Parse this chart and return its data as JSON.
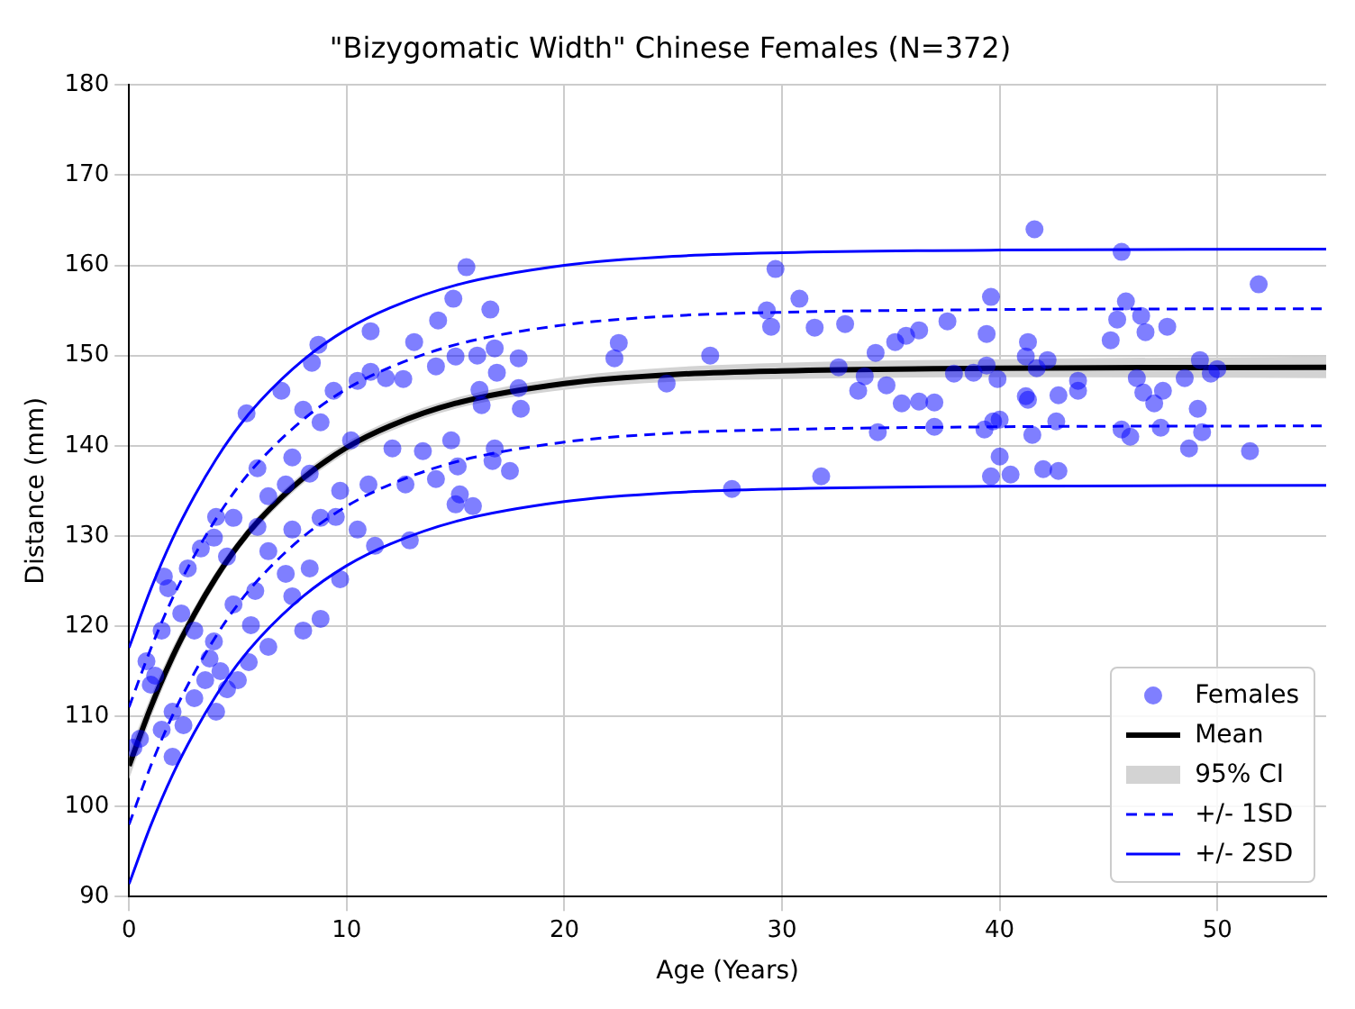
{
  "chart_data": {
    "type": "scatter",
    "title": "\"Bizygomatic Width\" Chinese Females (N=372)",
    "xlabel": "Age (Years)",
    "ylabel": "Distance (mm)",
    "xlim": [
      0,
      55
    ],
    "xticks": [
      0,
      10,
      20,
      30,
      40,
      50
    ],
    "ylim": [
      90,
      180
    ],
    "yticks": [
      90,
      100,
      110,
      120,
      130,
      140,
      150,
      160,
      170,
      180
    ],
    "grid": true,
    "legend": "bottom right",
    "annotations": [
      "95% CI"
    ],
    "series": [
      {
        "name": "Females",
        "type": "scatter",
        "color": "#0000ff",
        "marker": "circle",
        "x": [
          0.2,
          0.5,
          0.8,
          1.0,
          1.2,
          1.5,
          1.5,
          1.6,
          1.8,
          2.0,
          2.0,
          2.4,
          2.5,
          2.7,
          3.0,
          3.0,
          3.3,
          3.5,
          3.7,
          3.9,
          3.9,
          4.0,
          4.0,
          4.2,
          4.5,
          4.5,
          4.8,
          4.8,
          5.0,
          5.4,
          5.5,
          5.6,
          5.8,
          5.9,
          5.9,
          6.4,
          6.4,
          6.4,
          7.0,
          7.2,
          7.2,
          7.5,
          7.5,
          7.5,
          8.0,
          8.0,
          8.3,
          8.3,
          8.4,
          8.7,
          8.8,
          8.8,
          8.8,
          9.4,
          9.5,
          9.7,
          9.7,
          10.2,
          10.5,
          10.5,
          11.0,
          11.1,
          11.1,
          11.3,
          11.8,
          12.1,
          12.6,
          12.7,
          12.9,
          13.1,
          13.5,
          14.1,
          14.1,
          14.2,
          14.8,
          14.9,
          15.0,
          15.0,
          15.1,
          15.2,
          15.5,
          15.8,
          16.0,
          16.1,
          16.2,
          16.6,
          16.7,
          16.8,
          16.8,
          16.9,
          17.5,
          17.9,
          17.9,
          18.0,
          22.3,
          22.5,
          24.7,
          26.7,
          27.7,
          29.3,
          29.5,
          29.7,
          30.8,
          31.5,
          31.8,
          32.6,
          32.9,
          33.5,
          33.8,
          34.3,
          34.4,
          34.8,
          35.2,
          35.5,
          35.7,
          36.3,
          36.3,
          37.0,
          37.0,
          37.6,
          37.9,
          38.8,
          39.3,
          39.4,
          39.4,
          39.6,
          39.6,
          39.7,
          39.9,
          40.0,
          40.0,
          40.5,
          41.2,
          41.2,
          41.3,
          41.3,
          41.5,
          41.6,
          41.7,
          42.0,
          42.2,
          42.6,
          42.7,
          42.7,
          43.6,
          43.6,
          45.1,
          45.4,
          45.6,
          45.6,
          45.8,
          46.0,
          46.3,
          46.5,
          46.6,
          46.7,
          47.1,
          47.4,
          47.5,
          47.7,
          48.5,
          48.7,
          49.1,
          49.2,
          49.3,
          49.7,
          50.0,
          51.5,
          51.9
        ],
        "values": [
          106.5,
          107.5,
          116.1,
          113.5,
          114.5,
          108.5,
          119.5,
          125.5,
          124.2,
          105.5,
          110.5,
          121.4,
          109.0,
          126.4,
          112.0,
          119.5,
          128.6,
          114.0,
          116.4,
          118.3,
          129.8,
          110.5,
          132.1,
          115.0,
          113.0,
          127.7,
          122.4,
          132.0,
          114.0,
          143.6,
          116.0,
          120.1,
          123.9,
          131.0,
          137.5,
          117.7,
          128.3,
          134.4,
          146.1,
          125.8,
          135.7,
          123.3,
          130.7,
          138.7,
          119.5,
          144.0,
          126.4,
          136.9,
          149.2,
          151.2,
          120.8,
          132.0,
          142.6,
          146.1,
          132.1,
          125.2,
          135.0,
          140.6,
          130.7,
          147.2,
          135.7,
          148.2,
          152.7,
          128.9,
          147.5,
          139.7,
          147.4,
          135.7,
          129.5,
          151.5,
          139.4,
          136.3,
          148.8,
          153.9,
          140.6,
          156.3,
          133.5,
          149.9,
          137.7,
          134.6,
          159.8,
          133.3,
          150.0,
          146.2,
          144.5,
          155.1,
          138.3,
          139.7,
          150.8,
          148.1,
          137.2,
          146.4,
          149.7,
          144.1,
          149.7,
          151.4,
          146.9,
          150.0,
          135.2,
          155.0,
          153.2,
          159.6,
          156.3,
          153.1,
          136.6,
          148.7,
          153.5,
          146.1,
          147.7,
          150.3,
          141.5,
          146.7,
          151.5,
          144.7,
          152.2,
          152.8,
          144.9,
          144.8,
          142.1,
          153.8,
          148.0,
          148.1,
          141.8,
          152.4,
          148.9,
          156.5,
          136.6,
          142.7,
          147.4,
          142.9,
          138.8,
          136.8,
          149.9,
          145.5,
          151.5,
          145.1,
          141.2,
          164.0,
          148.6,
          137.4,
          149.5,
          142.7,
          145.6,
          137.2,
          147.2,
          146.1,
          151.7,
          154.0,
          161.5,
          141.8,
          156.0,
          141.0,
          147.5,
          154.4,
          145.9,
          152.6,
          144.7,
          142.0,
          146.1,
          153.2,
          147.5,
          139.7,
          144.1,
          149.5,
          141.5,
          148.0,
          148.5,
          139.4,
          157.9
        ]
      },
      {
        "name": "Mean",
        "type": "line",
        "color": "#000000",
        "x": [
          0,
          1,
          2,
          3,
          4,
          5,
          6,
          8,
          10,
          12,
          15,
          20,
          25,
          30,
          40,
          55
        ],
        "values": [
          104.5,
          111.0,
          116.6,
          121.3,
          125.4,
          128.9,
          131.8,
          136.4,
          139.8,
          142.2,
          144.7,
          146.9,
          147.9,
          148.3,
          148.6,
          148.7
        ],
        "lower": [
          103.0,
          109.8,
          115.6,
          120.5,
          124.7,
          128.3,
          131.2,
          135.8,
          139.2,
          141.6,
          144.1,
          146.2,
          147.1,
          147.4,
          147.6,
          147.5
        ],
        "upper": [
          106.0,
          112.2,
          117.6,
          122.1,
          126.1,
          129.5,
          132.4,
          137.0,
          140.4,
          142.8,
          145.3,
          147.6,
          148.7,
          149.2,
          149.6,
          149.9
        ]
      },
      {
        "name": "+/- 1SD",
        "type": "line",
        "color": "#0000ff",
        "line_style": "dashed",
        "x": [
          0,
          1,
          2,
          3,
          4,
          5,
          6,
          8,
          10,
          12,
          15,
          20,
          25,
          30,
          40,
          55
        ],
        "values": [
          111.0,
          117.5,
          123.1,
          127.8,
          131.9,
          135.4,
          138.3,
          142.9,
          146.3,
          148.7,
          151.2,
          153.4,
          154.4,
          154.8,
          155.1,
          155.2
        ]
      },
      {
        "type": "line",
        "color": "#0000ff",
        "line_style": "dashed",
        "x": [
          0,
          1,
          2,
          3,
          4,
          5,
          6,
          8,
          10,
          12,
          15,
          20,
          25,
          30,
          40,
          55
        ],
        "values": [
          98.0,
          104.5,
          110.1,
          114.8,
          118.9,
          122.4,
          125.3,
          129.9,
          133.3,
          135.7,
          138.2,
          140.4,
          141.4,
          141.8,
          142.1,
          142.2
        ]
      },
      {
        "name": "+/- 2SD",
        "type": "line",
        "color": "#0000ff",
        "line_style": "solid",
        "x": [
          0,
          1,
          2,
          3,
          4,
          5,
          6,
          8,
          10,
          12,
          15,
          20,
          25,
          30,
          40,
          55
        ],
        "values": [
          117.6,
          124.1,
          129.7,
          134.4,
          138.5,
          142.0,
          144.9,
          149.5,
          152.9,
          155.3,
          157.8,
          160.0,
          161.0,
          161.4,
          161.7,
          161.8
        ]
      },
      {
        "type": "line",
        "color": "#0000ff",
        "line_style": "solid",
        "x": [
          0,
          1,
          2,
          3,
          4,
          5,
          6,
          8,
          10,
          12,
          15,
          20,
          25,
          30,
          40,
          55
        ],
        "values": [
          91.4,
          97.9,
          103.5,
          108.2,
          112.3,
          115.8,
          118.7,
          123.3,
          126.7,
          129.1,
          131.6,
          133.8,
          134.8,
          135.2,
          135.5,
          135.6
        ]
      }
    ]
  }
}
